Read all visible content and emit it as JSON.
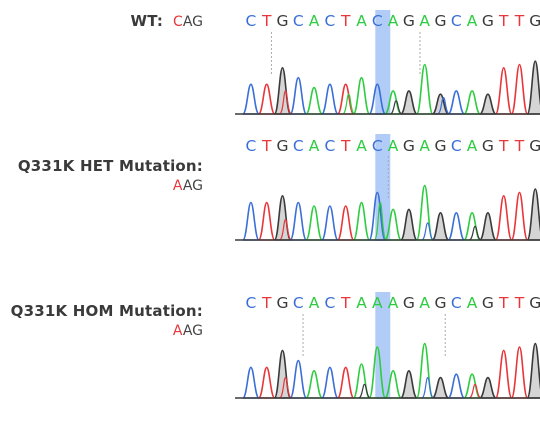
{
  "panels": [
    {
      "label": "WT:",
      "codon_mut": "C",
      "codon_rest": "AG",
      "sequence": [
        "C",
        "T",
        "G",
        "C",
        "A",
        "C",
        "T",
        "A",
        "C",
        "A",
        "G",
        "A",
        "G",
        "C",
        "A",
        "G",
        "T",
        "T",
        "G"
      ],
      "highlight_index": 8
    },
    {
      "label": "Q331K HET Mutation:",
      "codon_mut": "A",
      "codon_rest": "AG",
      "sequence": [
        "C",
        "T",
        "G",
        "C",
        "A",
        "C",
        "T",
        "A",
        "C",
        "A",
        "G",
        "A",
        "G",
        "C",
        "A",
        "G",
        "T",
        "T",
        "G"
      ],
      "highlight_index": 8
    },
    {
      "label": "Q331K HOM Mutation:",
      "codon_mut": "A",
      "codon_rest": "AG",
      "sequence": [
        "C",
        "T",
        "G",
        "C",
        "A",
        "C",
        "T",
        "A",
        "A",
        "A",
        "G",
        "A",
        "G",
        "C",
        "A",
        "G",
        "T",
        "T",
        "G"
      ],
      "highlight_index": 8
    }
  ],
  "colors": {
    "A": "#2ecc40",
    "C": "#3a6fd8",
    "G": "#3a3a3a",
    "T": "#e8363a",
    "mutation": "#e8363a",
    "highlight": "#a9c7f5"
  }
}
